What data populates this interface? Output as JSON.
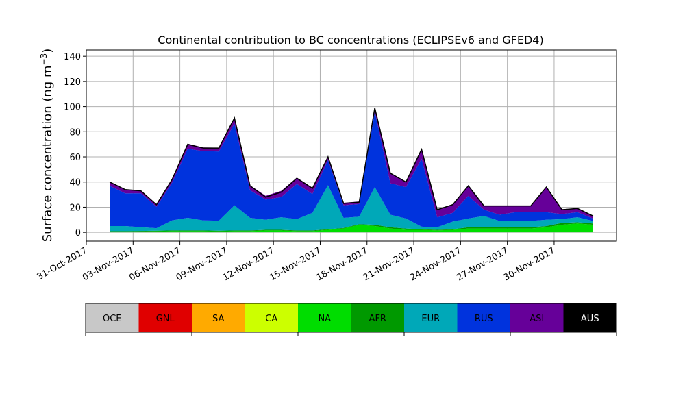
{
  "chart_data": {
    "type": "area",
    "stacked": true,
    "title": "Continental contribution to BC concentrations (ECLIPSEv6 and GFED4)",
    "ylabel_text": "Surface concentration (ng m",
    "ylabel_exp": "−3",
    "ylabel_close": ")",
    "xlabel": "",
    "ylim": [
      -7,
      145
    ],
    "yticks": [
      0,
      20,
      40,
      60,
      80,
      100,
      120,
      140
    ],
    "grid": true,
    "x_axis": {
      "type": "date",
      "start": "2017-10-31",
      "end": "2017-12-04",
      "tick_labels": [
        "31-Oct-2017",
        "03-Nov-2017",
        "06-Nov-2017",
        "09-Nov-2017",
        "12-Nov-2017",
        "15-Nov-2017",
        "18-Nov-2017",
        "21-Nov-2017",
        "24-Nov-2017",
        "27-Nov-2017",
        "30-Nov-2017"
      ],
      "tick_dates": [
        "2017-10-31",
        "2017-11-03",
        "2017-11-06",
        "2017-11-09",
        "2017-11-12",
        "2017-11-15",
        "2017-11-18",
        "2017-11-21",
        "2017-11-24",
        "2017-11-27",
        "2017-11-30"
      ]
    },
    "x": [
      "2017-11-01",
      "2017-11-02",
      "2017-11-03",
      "2017-11-04",
      "2017-11-05",
      "2017-11-06",
      "2017-11-07",
      "2017-11-08",
      "2017-11-09",
      "2017-11-10",
      "2017-11-11",
      "2017-11-12",
      "2017-11-13",
      "2017-11-14",
      "2017-11-15",
      "2017-11-16",
      "2017-11-17",
      "2017-11-18",
      "2017-11-19",
      "2017-11-20",
      "2017-11-21",
      "2017-11-22",
      "2017-11-23",
      "2017-11-24",
      "2017-11-25",
      "2017-11-26",
      "2017-11-27",
      "2017-11-28",
      "2017-11-29",
      "2017-11-30",
      "2017-12-01",
      "2017-12-02"
    ],
    "series": [
      {
        "name": "OCE",
        "color": "#c8c8c8",
        "values": [
          0,
          0,
          0,
          0,
          0,
          0,
          0,
          0,
          0,
          0,
          0,
          0,
          0,
          0,
          0,
          0,
          0,
          0,
          0,
          0,
          0,
          0,
          0,
          0,
          0,
          0,
          0,
          0,
          0,
          0,
          0,
          0
        ]
      },
      {
        "name": "GNL",
        "color": "#e00000",
        "values": [
          0,
          0,
          0,
          0,
          0,
          0,
          0,
          0,
          0,
          0,
          0,
          0,
          0,
          0,
          0,
          0,
          0,
          0,
          0,
          0,
          0,
          0,
          0,
          0,
          0,
          0,
          0,
          0,
          0,
          0,
          0,
          0
        ]
      },
      {
        "name": "SA",
        "color": "#ffaa00",
        "values": [
          0,
          0,
          0,
          0,
          0,
          0,
          0,
          0,
          0,
          0,
          0,
          0,
          0,
          0,
          0,
          0,
          0,
          0,
          0,
          0,
          0,
          0,
          0,
          0,
          0,
          0,
          0,
          0,
          0,
          0,
          0,
          0
        ]
      },
      {
        "name": "CA",
        "color": "#ccff00",
        "values": [
          0,
          0,
          0,
          0,
          0,
          0,
          0,
          0,
          0,
          0,
          0,
          0,
          0,
          0,
          0,
          0,
          0,
          0,
          0,
          0,
          0,
          0,
          0,
          0,
          0,
          0,
          0,
          0,
          0,
          0,
          0,
          0
        ]
      },
      {
        "name": "NA",
        "color": "#00dd00",
        "values": [
          0.5,
          0.5,
          0.6,
          0.8,
          1,
          1,
          1,
          0.8,
          1,
          1,
          1.5,
          1.5,
          1,
          1,
          2,
          3,
          6,
          5,
          3,
          2,
          2,
          1.5,
          2,
          3,
          3,
          3,
          3,
          3,
          4,
          6,
          7,
          6
        ]
      },
      {
        "name": "AFR",
        "color": "#009900",
        "values": [
          0.5,
          0.5,
          0.5,
          0.5,
          0.5,
          0.5,
          0.5,
          0.5,
          0.5,
          0.5,
          0.5,
          0.5,
          0.5,
          0.5,
          0.5,
          0.5,
          0.5,
          1,
          1,
          1,
          0.5,
          0.5,
          0.5,
          1,
          1,
          1,
          1,
          1,
          1,
          1.5,
          1,
          1
        ]
      },
      {
        "name": "EUR",
        "color": "#00a8b8",
        "values": [
          4,
          4,
          3,
          2,
          8,
          10,
          8,
          8,
          20,
          10,
          8,
          10,
          9,
          14,
          35,
          8,
          6,
          30,
          10,
          8,
          2,
          2,
          6,
          7,
          9,
          5,
          5,
          5,
          5,
          3,
          4,
          2
        ]
      },
      {
        "name": "RUS",
        "color": "#0033dd",
        "values": [
          32,
          26,
          27,
          17,
          30,
          55,
          55,
          55,
          65,
          22,
          16,
          16,
          28,
          15,
          20,
          10,
          10,
          60,
          25,
          25,
          54,
          8,
          7,
          18,
          5,
          5,
          7,
          7,
          6,
          4,
          4,
          2
        ]
      },
      {
        "name": "ASI",
        "color": "#660099",
        "values": [
          3,
          3,
          2,
          2,
          3,
          4,
          3,
          3,
          5,
          4,
          3,
          5,
          5,
          5,
          3,
          2,
          2,
          4,
          8,
          4,
          8,
          6,
          7,
          8,
          3,
          7,
          5,
          5,
          20,
          4,
          3,
          2
        ]
      },
      {
        "name": "AUS",
        "color": "#000000",
        "values": [
          0,
          0,
          0,
          0,
          0,
          0,
          0,
          0,
          0,
          0,
          0,
          0,
          0,
          0,
          0,
          0,
          0,
          0,
          0,
          0,
          0,
          0,
          0,
          0,
          0,
          0,
          0,
          0,
          0,
          0,
          0,
          0
        ]
      }
    ],
    "total": [
      40,
      34,
      33,
      22,
      42,
      70,
      67,
      67,
      91,
      37,
      28,
      32,
      43,
      35,
      60,
      23,
      24,
      99,
      47,
      40,
      66,
      18,
      22,
      37,
      21,
      21,
      21,
      21,
      36,
      18,
      19,
      13
    ]
  },
  "legend": {
    "labels": [
      "OCE",
      "GNL",
      "SA",
      "CA",
      "NA",
      "AFR",
      "EUR",
      "RUS",
      "ASI",
      "AUS"
    ],
    "colors": [
      "#c8c8c8",
      "#e00000",
      "#ffaa00",
      "#ccff00",
      "#00dd00",
      "#009900",
      "#00a8b8",
      "#0033dd",
      "#660099",
      "#000000"
    ],
    "label_colors": [
      "#000000",
      "#000000",
      "#000000",
      "#000000",
      "#000000",
      "#000000",
      "#000000",
      "#000000",
      "#000000",
      "#ffffff"
    ]
  }
}
